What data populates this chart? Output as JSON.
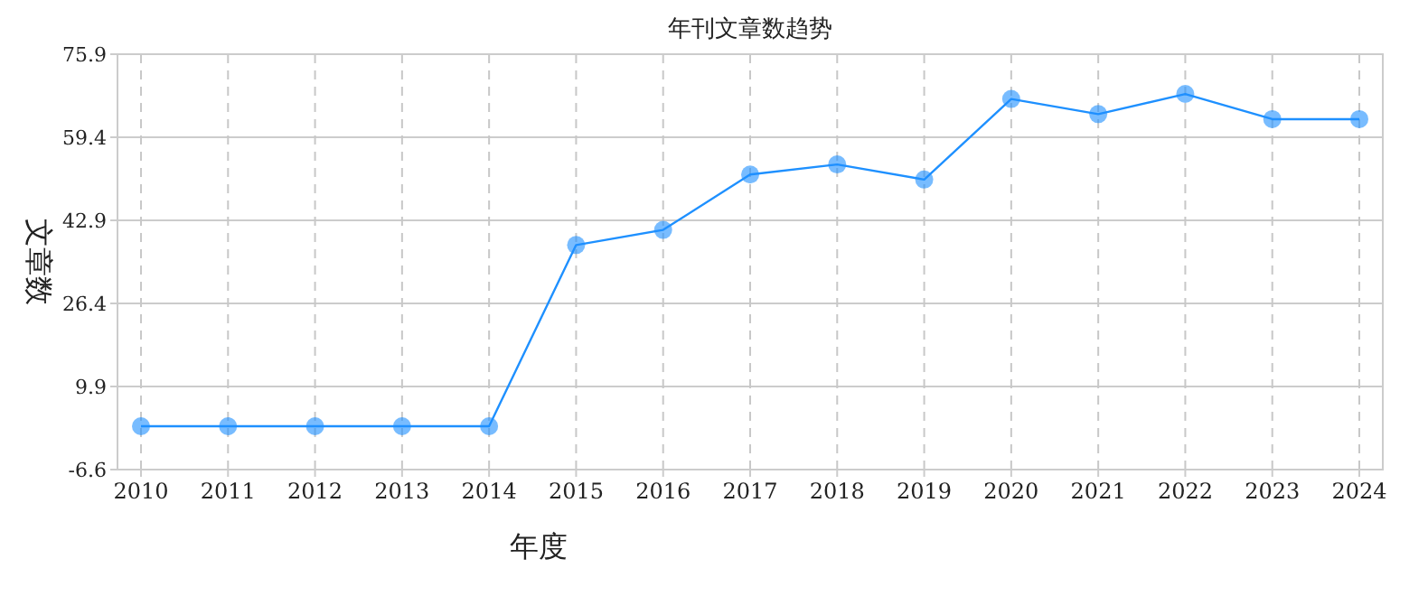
{
  "chart_data": {
    "type": "line",
    "title": "年刊文章数趋势",
    "xlabel": "年度",
    "ylabel": "文章数",
    "categories": [
      "2010",
      "2011",
      "2012",
      "2013",
      "2014",
      "2015",
      "2016",
      "2017",
      "2018",
      "2019",
      "2020",
      "2021",
      "2022",
      "2023",
      "2024"
    ],
    "series": [
      {
        "color": "#1e90ff",
        "values": [
          2,
          2,
          2,
          2,
          2,
          38,
          41,
          52,
          54,
          51,
          67,
          64,
          68,
          63,
          63
        ]
      }
    ],
    "ylim": [
      -6.6,
      75.9
    ],
    "yticks": [
      -6.6,
      9.9,
      26.4,
      42.9,
      59.4,
      75.9
    ],
    "grid": true,
    "marker": "circle"
  }
}
